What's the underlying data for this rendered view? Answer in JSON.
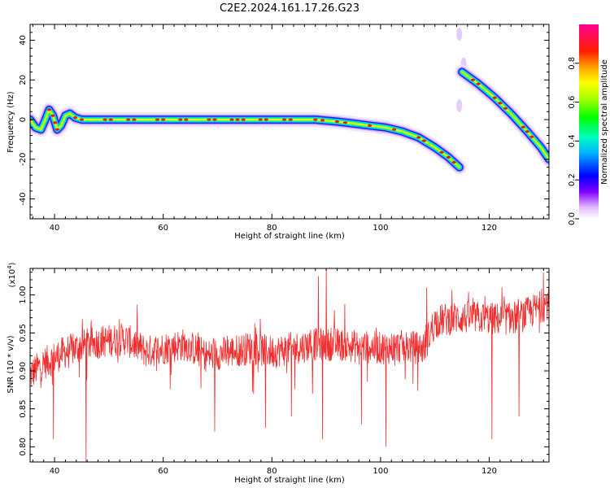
{
  "figure": {
    "title": "C2E2.2024.161.17.26.G23"
  },
  "chart_data": [
    {
      "type": "heatmap",
      "xlabel": "Height of straight line (km)",
      "ylabel": "Frequency (Hz)",
      "xlim": [
        35.5,
        131
      ],
      "ylim": [
        -50,
        48
      ],
      "xticks": [
        40,
        60,
        80,
        100,
        120
      ],
      "yticks": [
        -40,
        -20,
        0,
        20,
        40
      ],
      "colorbar": {
        "label": "Normalized spectral amplitude",
        "range": [
          0,
          1
        ],
        "ticks": [
          0.0,
          0.2,
          0.4,
          0.6,
          0.8
        ],
        "tick_labels": [
          "0.0",
          "0.2",
          "0.4",
          "0.6",
          "0.8"
        ]
      },
      "tracks": [
        {
          "name": "track-1",
          "points": [
            [
              35.5,
              0
            ],
            [
              36.5,
              -4
            ],
            [
              37.5,
              -5
            ],
            [
              38.3,
              0
            ],
            [
              39,
              5
            ],
            [
              39.7,
              2
            ],
            [
              40.5,
              -5
            ],
            [
              41.2,
              -3
            ],
            [
              42,
              2
            ],
            [
              42.8,
              3
            ],
            [
              43.8,
              1
            ],
            [
              45,
              0
            ],
            [
              60,
              0
            ],
            [
              80,
              0
            ],
            [
              88,
              0
            ],
            [
              92,
              -1
            ],
            [
              95,
              -2
            ],
            [
              98,
              -3
            ],
            [
              101,
              -4
            ],
            [
              104,
              -6
            ],
            [
              107,
              -9
            ],
            [
              110,
              -14
            ],
            [
              112.5,
              -19
            ],
            [
              114.5,
              -24
            ]
          ]
        },
        {
          "name": "track-2",
          "points": [
            [
              115,
              24
            ],
            [
              118,
              18
            ],
            [
              121,
              11
            ],
            [
              124,
              3
            ],
            [
              127,
              -6
            ],
            [
              129.5,
              -14
            ],
            [
              131,
              -20
            ]
          ]
        }
      ],
      "faint_blobs": [
        {
          "x": 114.5,
          "y": 43
        },
        {
          "x": 114.5,
          "y": 7
        },
        {
          "x": 115.3,
          "y": 28
        }
      ]
    },
    {
      "type": "line",
      "xlabel": "Height of straight line (km)",
      "ylabel": "SNR (10 * v/v)",
      "scale_note": "(x10",
      "scale_exp": "4",
      "scale_close": ")",
      "xlim": [
        35.5,
        131
      ],
      "ylim": [
        0.78,
        1.035
      ],
      "xticks": [
        40,
        60,
        80,
        100,
        120
      ],
      "yticks": [
        0.8,
        0.85,
        0.9,
        0.95,
        1.0
      ],
      "ytick_labels": [
        "0.80",
        "0.85",
        "0.90",
        "0.95",
        "1.00"
      ],
      "line_color": "#f03030",
      "baseline": [
        [
          35.5,
          0.895
        ],
        [
          38,
          0.91
        ],
        [
          42,
          0.925
        ],
        [
          46,
          0.935
        ],
        [
          50,
          0.94
        ],
        [
          53,
          0.942
        ],
        [
          57,
          0.925
        ],
        [
          60,
          0.93
        ],
        [
          64,
          0.935
        ],
        [
          68,
          0.92
        ],
        [
          72,
          0.925
        ],
        [
          76,
          0.93
        ],
        [
          80,
          0.925
        ],
        [
          84,
          0.93
        ],
        [
          88,
          0.935
        ],
        [
          92,
          0.935
        ],
        [
          96,
          0.932
        ],
        [
          100,
          0.93
        ],
        [
          104,
          0.932
        ],
        [
          108,
          0.93
        ],
        [
          110,
          0.965
        ],
        [
          114,
          0.97
        ],
        [
          118,
          0.97
        ],
        [
          122,
          0.968
        ],
        [
          126,
          0.972
        ],
        [
          131,
          0.99
        ]
      ],
      "noise_amplitude": 0.022,
      "spikes": [
        {
          "x": 45.8,
          "y": 0.78
        },
        {
          "x": 39.8,
          "y": 0.81
        },
        {
          "x": 69.5,
          "y": 0.82
        },
        {
          "x": 78.8,
          "y": 0.825
        },
        {
          "x": 83.6,
          "y": 0.84
        },
        {
          "x": 87.5,
          "y": 0.87
        },
        {
          "x": 88.6,
          "y": 1.025
        },
        {
          "x": 89.3,
          "y": 0.81
        },
        {
          "x": 90.0,
          "y": 1.035
        },
        {
          "x": 91.5,
          "y": 0.98
        },
        {
          "x": 96.5,
          "y": 0.83
        },
        {
          "x": 101.0,
          "y": 0.8
        },
        {
          "x": 108.5,
          "y": 1.01
        },
        {
          "x": 120.5,
          "y": 0.81
        },
        {
          "x": 125.5,
          "y": 0.84
        },
        {
          "x": 130.0,
          "y": 1.03
        }
      ]
    }
  ]
}
